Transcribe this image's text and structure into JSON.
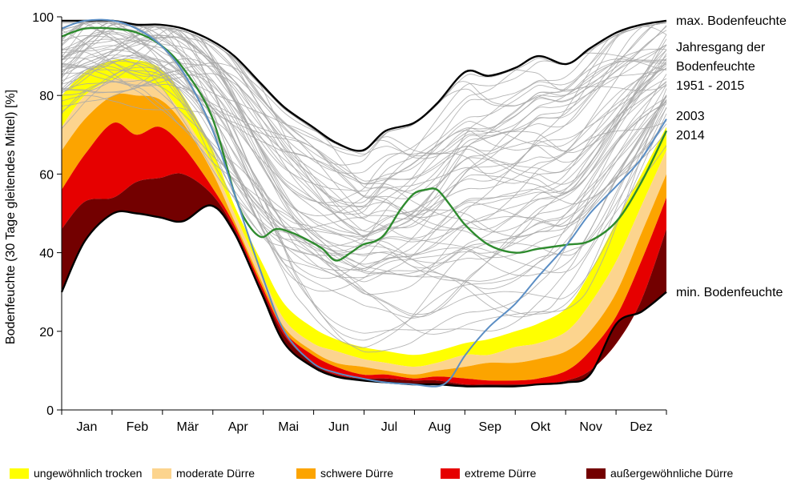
{
  "chart_data": {
    "type": "area",
    "ylabel": "Bodenfeuchte (30 Tage gleitendes Mittel) [%]",
    "ylim": [
      0,
      100
    ],
    "yticks": [
      0,
      20,
      40,
      60,
      80,
      100
    ],
    "months": [
      "Jan",
      "Feb",
      "Mär",
      "Apr",
      "Mai",
      "Jun",
      "Jul",
      "Aug",
      "Sep",
      "Okt",
      "Nov",
      "Dez"
    ],
    "grid": false,
    "right_labels": {
      "max": "max. Bodenfeuchte",
      "annual_line1": "Jahresgang der",
      "annual_line2": "Bodenfeuchte",
      "annual_line3": "1951 - 2015",
      "year1": "2003",
      "year2": "2014",
      "min": "min. Bodenfeuchte"
    },
    "x_days": [
      1,
      15,
      32,
      46,
      60,
      74,
      91,
      105,
      121,
      135,
      152,
      166,
      182,
      196,
      213,
      227,
      244,
      258,
      274,
      288,
      305,
      319,
      335,
      350,
      365
    ],
    "bands": {
      "max": [
        99,
        99,
        99,
        98,
        98,
        97,
        94,
        90,
        83,
        77,
        72,
        68,
        66,
        71,
        73,
        78,
        86,
        85,
        87,
        90,
        88,
        92,
        96,
        98,
        99
      ],
      "p30": [
        80,
        86,
        89,
        89,
        87,
        80,
        67,
        52,
        38,
        27,
        21,
        18,
        16,
        15,
        14,
        15,
        17,
        18,
        20,
        22,
        26,
        35,
        48,
        60,
        72
      ],
      "p20": [
        72,
        80,
        84,
        84,
        82,
        75,
        63,
        50,
        35,
        23,
        17,
        15,
        13,
        12,
        11,
        12,
        14,
        14,
        16,
        17,
        20,
        27,
        38,
        52,
        66
      ],
      "p10": [
        66,
        74,
        80,
        80,
        79,
        73,
        61,
        48,
        33,
        21,
        15,
        12,
        11,
        10,
        9,
        10,
        11,
        12,
        12,
        13,
        15,
        20,
        30,
        45,
        60
      ],
      "p05": [
        56,
        65,
        73,
        70,
        72,
        67,
        57,
        47,
        32,
        20,
        14,
        11,
        9,
        9,
        8,
        8.5,
        8,
        7.5,
        7.5,
        8,
        10,
        15,
        24,
        38,
        54
      ],
      "p02": [
        46,
        53,
        54,
        58,
        59,
        60,
        55,
        46,
        31,
        19,
        12,
        9,
        8,
        8,
        7.5,
        7.5,
        6.5,
        6.5,
        6.5,
        6.5,
        7.5,
        10,
        17,
        28,
        46
      ],
      "min": [
        30,
        43,
        50,
        50,
        49,
        48,
        52,
        45,
        30,
        17,
        11,
        8.5,
        7.5,
        7,
        6.5,
        6.5,
        6,
        6,
        6,
        6.5,
        7,
        9,
        22,
        25,
        30
      ]
    },
    "colors": {
      "ungewoehnlich_trocken": "#ffff00",
      "moderate_duerre": "#fcd48e",
      "schwere_duerre": "#fca400",
      "extreme_duerre": "#e60000",
      "aussergewoehnliche_duerre": "#730000",
      "background_years": "#a8a8a8",
      "envelope": "#000000",
      "series_2003": "#2e8b2e",
      "series_2014": "#5b8ec4"
    },
    "series": [
      {
        "key": "2003",
        "x_days": [
          1,
          15,
          32,
          46,
          60,
          74,
          91,
          105,
          112,
          121,
          130,
          140,
          150,
          158,
          166,
          175,
          182,
          190,
          196,
          205,
          213,
          220,
          227,
          235,
          244,
          258,
          274,
          288,
          305,
          319,
          335,
          350,
          365
        ],
        "values": [
          95,
          97,
          97,
          96,
          93,
          87,
          75,
          55,
          48,
          44,
          46,
          45,
          43,
          41,
          38,
          40,
          42,
          43,
          45,
          51,
          55,
          56,
          56,
          52,
          47,
          42,
          40,
          41,
          42,
          43,
          48,
          58,
          71
        ]
      },
      {
        "key": "2014",
        "x_days": [
          1,
          15,
          32,
          46,
          60,
          74,
          91,
          105,
          121,
          135,
          152,
          166,
          182,
          196,
          213,
          227,
          235,
          244,
          258,
          274,
          288,
          305,
          319,
          335,
          350,
          365
        ],
        "values": [
          97,
          99,
          99,
          97,
          93,
          86,
          72,
          55,
          35,
          20,
          12,
          9.5,
          8,
          7,
          6.5,
          6,
          8,
          14,
          21,
          27,
          34,
          42,
          50,
          57,
          64,
          74
        ]
      }
    ],
    "legend": [
      {
        "label": "ungewöhnlich trocken",
        "color": "#ffff00"
      },
      {
        "label": "moderate Dürre",
        "color": "#fcd48e"
      },
      {
        "label": "schwere Dürre",
        "color": "#fca400"
      },
      {
        "label": "extreme Dürre",
        "color": "#e60000"
      },
      {
        "label": "außergewöhnliche Dürre",
        "color": "#730000"
      }
    ]
  }
}
